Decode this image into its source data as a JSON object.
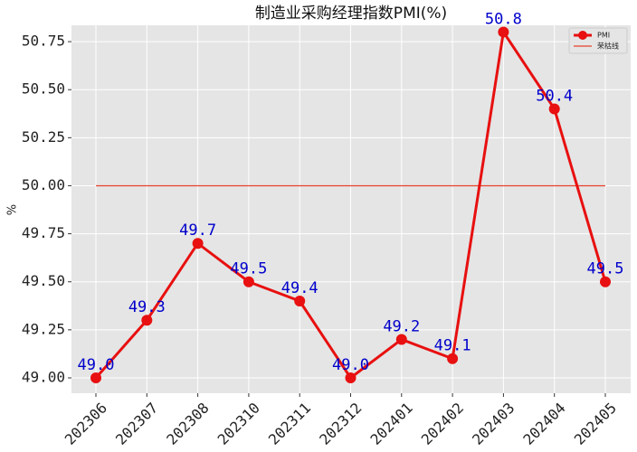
{
  "chart_data": {
    "type": "line",
    "title": "制造业采购经理指数PMI(%)",
    "y_label": "%",
    "categories": [
      "202306",
      "202307",
      "202308",
      "202310",
      "202311",
      "202312",
      "202401",
      "202402",
      "202403",
      "202404",
      "202405"
    ],
    "series": [
      {
        "name": "PMI",
        "color": "#e81010",
        "values": [
          49.0,
          49.3,
          49.7,
          49.5,
          49.4,
          49.0,
          49.2,
          49.1,
          50.8,
          50.4,
          49.5
        ],
        "value_labels": [
          "49.0",
          "49.3",
          "49.7",
          "49.5",
          "49.4",
          "49.0",
          "49.2",
          "49.1",
          "50.8",
          "50.4",
          "49.5"
        ],
        "value_label_color": "#0000cc"
      }
    ],
    "reference_line": {
      "name": "荣枯线",
      "value": 50,
      "color": "#e8412c"
    },
    "ylim": [
      48.92,
      50.835
    ],
    "yticks": [
      {
        "value": 49,
        "label": "49.00"
      },
      49.25,
      {
        "value": 49.5,
        "label": "49.50"
      },
      49.75,
      {
        "value": 50,
        "label": "50.00"
      },
      50.25,
      {
        "value": 50.5,
        "label": "50.50"
      },
      50.75
    ],
    "grid": true,
    "legend": "upper right"
  }
}
